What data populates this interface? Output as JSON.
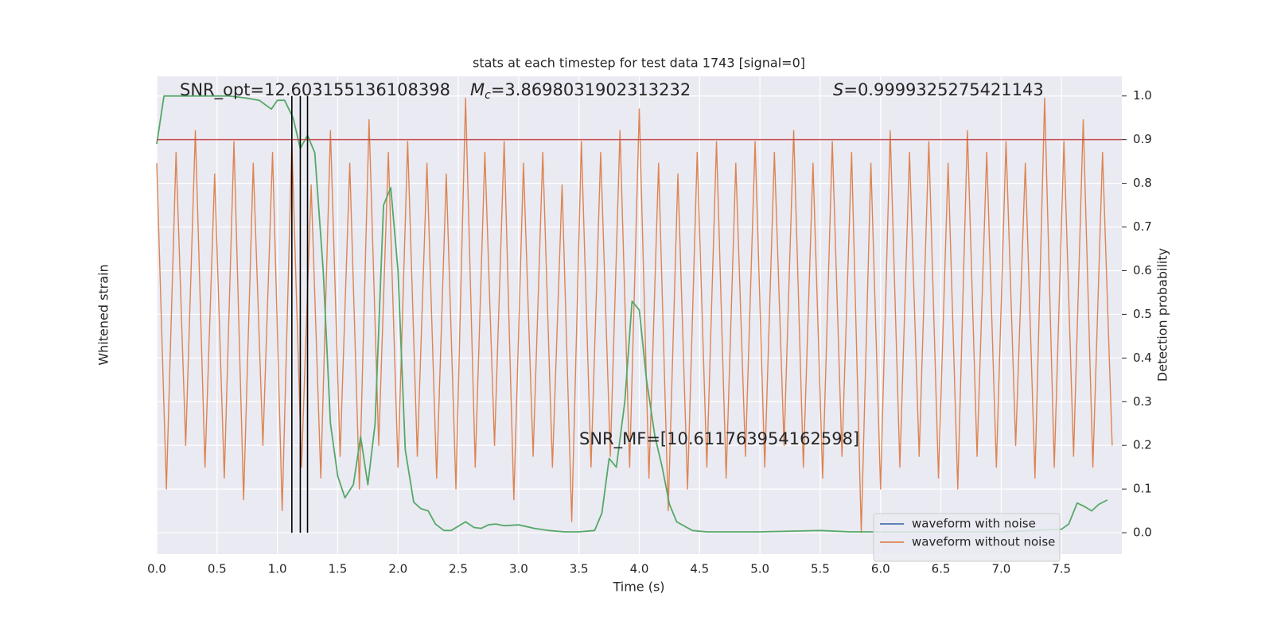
{
  "chart_data": {
    "type": "line",
    "title": "stats at each timestep for test data 1743 [signal=0]",
    "xlabel": "Time (s)",
    "ylabel": "Whitened strain",
    "y2label": "Detection probability",
    "xlim": [
      0,
      8.0
    ],
    "ylim": [
      -1.1,
      1.1
    ],
    "y2lim": [
      -0.049,
      1.045
    ],
    "xticks": [
      {
        "value": 0,
        "label": "0.0"
      },
      0.5,
      {
        "value": 1,
        "label": "1.0"
      },
      1.5,
      {
        "value": 2,
        "label": "2.0"
      },
      2.5,
      {
        "value": 3,
        "label": "3.0"
      },
      3.5,
      {
        "value": 4,
        "label": "4.0"
      },
      4.5,
      {
        "value": 5,
        "label": "5.0"
      },
      5.5,
      {
        "value": 6,
        "label": "6.0"
      },
      6.5,
      {
        "value": 7,
        "label": "7.0"
      },
      7.5
    ],
    "y2ticks": [
      {
        "value": 0,
        "label": "0.0"
      },
      0.1,
      0.2,
      0.3,
      0.4,
      0.5,
      0.6,
      0.7,
      0.8,
      0.9,
      {
        "value": 1,
        "label": "1.0"
      }
    ],
    "grid": true,
    "legend": "lower right",
    "series": [
      {
        "name": "waveform with noise",
        "color": "#4c72b0"
      },
      {
        "name": "waveform without noise",
        "color": "#dd8452",
        "x": [
          0,
          0.08,
          0.16,
          0.24,
          0.32,
          0.4,
          0.48,
          0.56,
          0.64,
          0.72,
          0.8,
          0.88,
          0.96,
          1.04,
          1.12,
          1.2,
          1.28,
          1.36,
          1.44,
          1.52,
          1.6,
          1.68,
          1.76,
          1.84,
          1.92,
          2,
          2.08,
          2.16,
          2.24,
          2.32,
          2.4,
          2.48,
          2.56,
          2.64,
          2.72,
          2.8,
          2.88,
          2.96,
          3.04,
          3.12,
          3.2,
          3.28,
          3.36,
          3.44,
          3.52,
          3.6,
          3.68,
          3.76,
          3.84,
          3.92,
          4,
          4.08,
          4.16,
          4.24,
          4.32,
          4.4,
          4.48,
          4.56,
          4.64,
          4.72,
          4.8,
          4.88,
          4.96,
          5.04,
          5.12,
          5.2,
          5.28,
          5.36,
          5.44,
          5.52,
          5.6,
          5.68,
          5.76,
          5.84,
          5.92,
          6,
          6.08,
          6.16,
          6.24,
          6.32,
          6.4,
          6.48,
          6.56,
          6.64,
          6.72,
          6.8,
          6.88,
          6.96,
          7.04,
          7.12,
          7.2,
          7.28,
          7.36,
          7.44,
          7.52,
          7.6,
          7.68,
          7.76,
          7.84,
          7.92
        ],
        "values": [
          0.7,
          -0.8,
          0.75,
          -0.6,
          0.85,
          -0.7,
          0.65,
          -0.75,
          0.8,
          -0.85,
          0.7,
          -0.6,
          0.75,
          -0.9,
          0.8,
          -0.7,
          0.6,
          -0.75,
          0.85,
          -0.65,
          0.7,
          -0.8,
          0.9,
          -0.6,
          0.75,
          -0.7,
          0.8,
          -0.65,
          0.7,
          -0.75,
          0.65,
          -0.8,
          1.0,
          -0.7,
          0.75,
          -0.6,
          0.8,
          -0.85,
          0.7,
          -0.65,
          0.75,
          -0.7,
          0.6,
          -0.95,
          0.8,
          -0.7,
          0.75,
          -0.65,
          0.85,
          -0.7,
          0.95,
          -0.75,
          0.7,
          -0.9,
          0.65,
          -0.8,
          0.75,
          -0.7,
          0.8,
          -0.75,
          0.7,
          -0.65,
          0.8,
          -0.7,
          0.75,
          -0.6,
          0.85,
          -0.7,
          0.7,
          -0.75,
          0.8,
          -0.65,
          0.75,
          -1.0,
          0.7,
          -0.8,
          0.85,
          -0.7,
          0.75,
          -0.65,
          0.8,
          -0.75,
          0.7,
          -0.8,
          0.85,
          -0.65,
          0.75,
          -0.7,
          0.8,
          -0.6,
          0.7,
          -0.75,
          1.0,
          -0.7,
          0.8,
          -0.65,
          0.9,
          -0.7,
          0.75,
          -0.6
        ]
      },
      {
        "color": "#55a868",
        "axis": "y2",
        "x": [
          0,
          0.06,
          0.2,
          0.4,
          0.6,
          0.75,
          0.85,
          0.95,
          1.0,
          1.06,
          1.13,
          1.19,
          1.25,
          1.31,
          1.38,
          1.44,
          1.5,
          1.56,
          1.63,
          1.69,
          1.75,
          1.81,
          1.88,
          1.94,
          2.0,
          2.06,
          2.13,
          2.19,
          2.25,
          2.31,
          2.38,
          2.44,
          2.5,
          2.56,
          2.63,
          2.69,
          2.75,
          2.81,
          2.88,
          3.0,
          3.13,
          3.25,
          3.38,
          3.5,
          3.63,
          3.69,
          3.75,
          3.81,
          3.88,
          3.94,
          4.0,
          4.06,
          4.13,
          4.19,
          4.25,
          4.31,
          4.44,
          4.56,
          5.0,
          5.5,
          5.75,
          6.0,
          6.5,
          7.0,
          7.25,
          7.5,
          7.56,
          7.63,
          7.69,
          7.75,
          7.81,
          7.88
        ],
        "values": [
          0.89,
          1.0,
          1.0,
          1.0,
          1.0,
          0.995,
          0.99,
          0.97,
          0.99,
          0.99,
          0.95,
          0.88,
          0.91,
          0.87,
          0.6,
          0.25,
          0.13,
          0.08,
          0.11,
          0.22,
          0.11,
          0.25,
          0.75,
          0.79,
          0.6,
          0.19,
          0.07,
          0.055,
          0.05,
          0.02,
          0.005,
          0.005,
          0.015,
          0.025,
          0.012,
          0.01,
          0.018,
          0.02,
          0.016,
          0.018,
          0.01,
          0.005,
          0.002,
          0.002,
          0.005,
          0.045,
          0.17,
          0.15,
          0.3,
          0.53,
          0.51,
          0.35,
          0.22,
          0.15,
          0.065,
          0.025,
          0.005,
          0.002,
          0.002,
          0.005,
          0.002,
          0.002,
          0.002,
          0.002,
          0.005,
          0.008,
          0.02,
          0.068,
          0.06,
          0.05,
          0.065,
          0.075
        ]
      }
    ],
    "hline": {
      "value": 0.9,
      "color": "#c44e52",
      "axis": "y2"
    },
    "vlines": {
      "values": [
        1.12,
        1.19,
        1.25
      ],
      "color": "#000000"
    },
    "annotations": {
      "snr_opt": "SNR_opt=12.603155136108398",
      "chirp_mass": {
        "symbol": "M",
        "subscript": "c",
        "text": "=3.8698031902313232"
      },
      "score": {
        "symbol": "S",
        "text": "=0.9999325275421143"
      },
      "snr_mf": "SNR_MF=[10.611763954162598]"
    }
  }
}
